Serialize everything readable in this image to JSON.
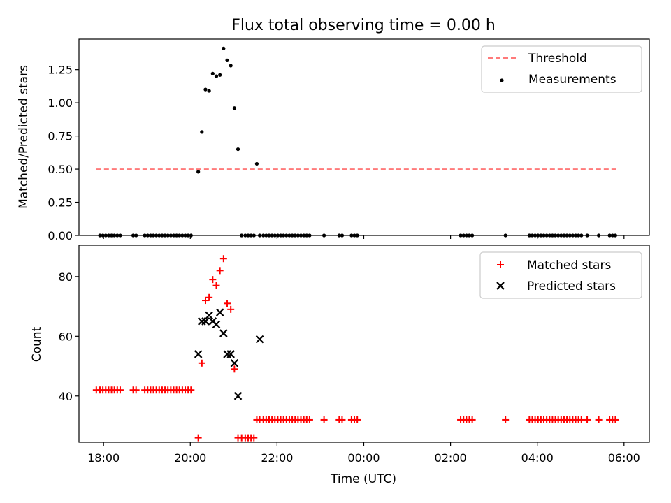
{
  "figure": {
    "title": "Flux total observing time = 0.00 h",
    "xlabel": "Time (UTC)"
  },
  "colors": {
    "measurements": "#000000",
    "threshold": "#ff7a7a",
    "matched": "#ff0000",
    "predicted": "#000000"
  },
  "chart_data": [
    {
      "type": "scatter",
      "ylabel": "Matched/Predicted stars",
      "xlim": [
        "17:26",
        "06:35"
      ],
      "ylim": [
        0,
        1.48
      ],
      "xticks_shown": false,
      "yticks": [
        "0.00",
        "0.25",
        "0.50",
        "0.75",
        "1.00",
        "1.25"
      ],
      "legend": {
        "position": "top-right",
        "entries": [
          "Threshold",
          "Measurements"
        ]
      },
      "threshold": {
        "name": "Threshold",
        "value": 0.5,
        "x_range": [
          "17:50",
          "05:50"
        ]
      },
      "series": [
        {
          "name": "Measurements",
          "marker": "dot",
          "x": [
            "17:55",
            "17:59",
            "18:03",
            "18:07",
            "18:11",
            "18:15",
            "18:19",
            "18:23",
            "18:41",
            "18:45",
            "18:57",
            "19:01",
            "19:05",
            "19:09",
            "19:13",
            "19:17",
            "19:21",
            "19:25",
            "19:29",
            "19:33",
            "19:37",
            "19:41",
            "19:45",
            "19:49",
            "19:53",
            "19:57",
            "20:01",
            "20:11",
            "20:16",
            "20:21",
            "20:26",
            "20:31",
            "20:36",
            "20:41",
            "20:46",
            "20:51",
            "20:56",
            "21:01",
            "21:06",
            "21:11",
            "21:16",
            "21:20",
            "21:24",
            "21:28",
            "21:32",
            "21:36",
            "21:41",
            "21:45",
            "21:49",
            "21:53",
            "21:57",
            "22:01",
            "22:05",
            "22:09",
            "22:13",
            "22:17",
            "22:21",
            "22:25",
            "22:29",
            "22:33",
            "22:37",
            "22:41",
            "22:45",
            "23:05",
            "23:26",
            "23:30",
            "23:43",
            "23:47",
            "23:51",
            "02:14",
            "02:18",
            "02:22",
            "02:26",
            "02:30",
            "03:16",
            "03:49",
            "03:53",
            "03:57",
            "04:01",
            "04:05",
            "04:09",
            "04:13",
            "04:17",
            "04:21",
            "04:25",
            "04:29",
            "04:33",
            "04:37",
            "04:41",
            "04:45",
            "04:49",
            "04:53",
            "04:57",
            "05:01",
            "05:09",
            "05:25",
            "05:40",
            "05:44",
            "05:48"
          ],
          "y": [
            0,
            0,
            0,
            0,
            0,
            0,
            0,
            0,
            0,
            0,
            0,
            0,
            0,
            0,
            0,
            0,
            0,
            0,
            0,
            0,
            0,
            0,
            0,
            0,
            0,
            0,
            0,
            0.48,
            0.78,
            1.1,
            1.09,
            1.22,
            1.2,
            1.21,
            1.41,
            1.32,
            1.28,
            0.96,
            0.65,
            0,
            0,
            0,
            0,
            0,
            0.54,
            0,
            0,
            0,
            0,
            0,
            0,
            0,
            0,
            0,
            0,
            0,
            0,
            0,
            0,
            0,
            0,
            0,
            0,
            0,
            0,
            0,
            0,
            0,
            0,
            0,
            0,
            0,
            0,
            0,
            0,
            0,
            0,
            0,
            0,
            0,
            0,
            0,
            0,
            0,
            0,
            0,
            0,
            0,
            0,
            0,
            0,
            0,
            0,
            0,
            0,
            0,
            0,
            0,
            0
          ]
        }
      ]
    },
    {
      "type": "scatter",
      "ylabel": "Count",
      "xlim": [
        "17:26",
        "06:35"
      ],
      "ylim": [
        24.5,
        90.5
      ],
      "yticks": [
        "40",
        "60",
        "80"
      ],
      "xticks": [
        "18:00",
        "20:00",
        "22:00",
        "00:00",
        "02:00",
        "04:00",
        "06:00"
      ],
      "legend": {
        "position": "top-right",
        "entries": [
          "Matched stars",
          "Predicted stars"
        ]
      },
      "series": [
        {
          "name": "Matched stars",
          "marker": "plus",
          "x": [
            "17:50",
            "17:55",
            "17:59",
            "18:03",
            "18:07",
            "18:11",
            "18:15",
            "18:19",
            "18:23",
            "18:41",
            "18:45",
            "18:57",
            "19:01",
            "19:05",
            "19:09",
            "19:13",
            "19:17",
            "19:21",
            "19:25",
            "19:29",
            "19:33",
            "19:37",
            "19:41",
            "19:45",
            "19:49",
            "19:53",
            "19:57",
            "20:01",
            "20:11",
            "20:16",
            "20:21",
            "20:26",
            "20:31",
            "20:36",
            "20:41",
            "20:46",
            "20:51",
            "20:56",
            "21:01",
            "21:06",
            "21:11",
            "21:16",
            "21:20",
            "21:24",
            "21:28",
            "21:32",
            "21:36",
            "21:41",
            "21:45",
            "21:49",
            "21:53",
            "21:57",
            "22:01",
            "22:05",
            "22:09",
            "22:13",
            "22:17",
            "22:21",
            "22:25",
            "22:29",
            "22:33",
            "22:37",
            "22:41",
            "22:45",
            "23:05",
            "23:26",
            "23:30",
            "23:43",
            "23:47",
            "23:51",
            "02:14",
            "02:18",
            "02:22",
            "02:26",
            "02:30",
            "03:16",
            "03:49",
            "03:53",
            "03:57",
            "04:01",
            "04:05",
            "04:09",
            "04:13",
            "04:17",
            "04:21",
            "04:25",
            "04:29",
            "04:33",
            "04:37",
            "04:41",
            "04:45",
            "04:49",
            "04:53",
            "04:57",
            "05:01",
            "05:09",
            "05:25",
            "05:40",
            "05:44",
            "05:48"
          ],
          "y": [
            42,
            42,
            42,
            42,
            42,
            42,
            42,
            42,
            42,
            42,
            42,
            42,
            42,
            42,
            42,
            42,
            42,
            42,
            42,
            42,
            42,
            42,
            42,
            42,
            42,
            42,
            42,
            42,
            26,
            51,
            72,
            73,
            79,
            77,
            82,
            86,
            71,
            69,
            49,
            26,
            26,
            26,
            26,
            26,
            26,
            32,
            32,
            32,
            32,
            32,
            32,
            32,
            32,
            32,
            32,
            32,
            32,
            32,
            32,
            32,
            32,
            32,
            32,
            32,
            32,
            32,
            32,
            32,
            32,
            32,
            32,
            32,
            32,
            32,
            32,
            32,
            32,
            32,
            32,
            32,
            32,
            32,
            32,
            32,
            32,
            32,
            32,
            32,
            32,
            32,
            32,
            32,
            32,
            32,
            32,
            32,
            32,
            32,
            32,
            32
          ]
        },
        {
          "name": "Predicted stars",
          "marker": "x",
          "x": [
            "20:11",
            "20:16",
            "20:21",
            "20:26",
            "20:31",
            "20:36",
            "20:41",
            "20:46",
            "20:51",
            "20:56",
            "21:01",
            "21:06",
            "21:36"
          ],
          "y": [
            54,
            65,
            65,
            67,
            65,
            64,
            68,
            61,
            54,
            54,
            51,
            40,
            59
          ]
        }
      ]
    }
  ]
}
